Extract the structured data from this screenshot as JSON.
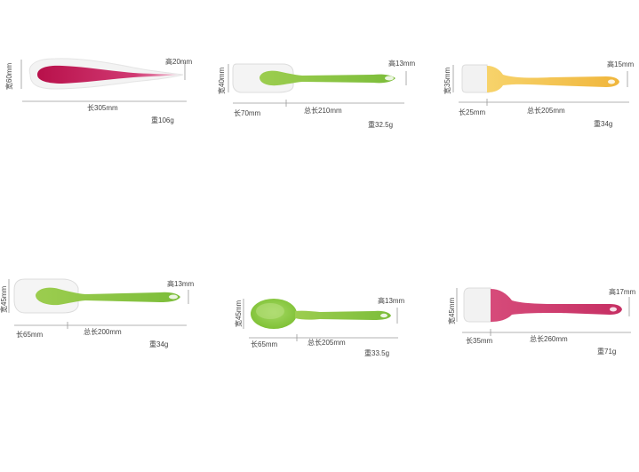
{
  "products": [
    {
      "id": "red-spatula",
      "width_label": "宽60mm",
      "height_label": "高20mm",
      "length_label": "长305mm",
      "weight_label": "重106g",
      "color": "#c8245c"
    },
    {
      "id": "green-spatula-small",
      "width_label": "宽40mm",
      "height_label": "高13mm",
      "head_length_label": "长70mm",
      "total_length_label": "总长210mm",
      "weight_label": "重32.5g",
      "color": "#8cc63f"
    },
    {
      "id": "yellow-brush",
      "width_label": "宽35mm",
      "height_label": "高15mm",
      "head_length_label": "长25mm",
      "total_length_label": "总长205mm",
      "weight_label": "重34g",
      "color": "#f3c24f"
    },
    {
      "id": "green-spatula-large",
      "width_label": "宽45mm",
      "height_label": "高13mm",
      "head_length_label": "长65mm",
      "total_length_label": "总长200mm",
      "weight_label": "重34g",
      "color": "#8cc63f"
    },
    {
      "id": "green-spoon",
      "width_label": "宽45mm",
      "height_label": "高13mm",
      "head_length_label": "长65mm",
      "total_length_label": "总长205mm",
      "weight_label": "重33.5g",
      "color": "#8cc63f"
    },
    {
      "id": "red-brush",
      "width_label": "宽45mm",
      "height_label": "高17mm",
      "head_length_label": "长35mm",
      "total_length_label": "总长260mm",
      "weight_label": "重71g",
      "color": "#d1476e"
    }
  ]
}
